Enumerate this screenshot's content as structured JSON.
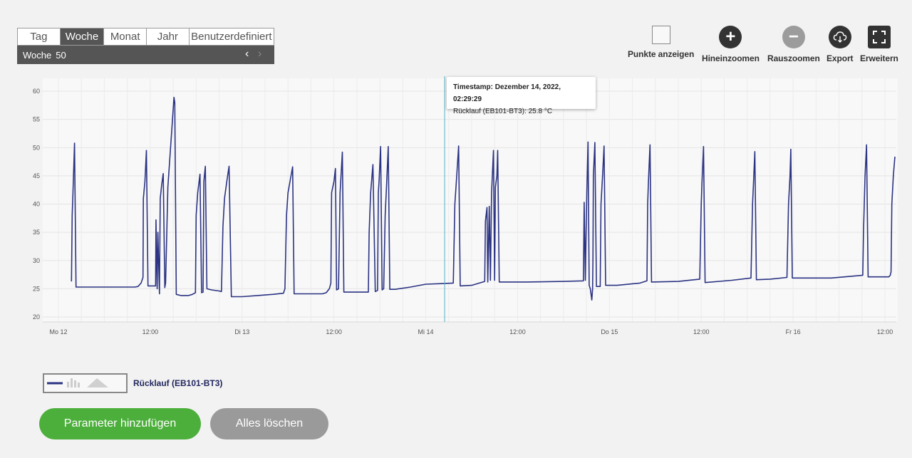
{
  "period": {
    "tabs": [
      "Tag",
      "Woche",
      "Monat",
      "Jahr",
      "Benutzerdefiniert"
    ],
    "active": "Woche",
    "label": "Woche",
    "number": "50"
  },
  "toolbar": {
    "show_points": "Punkte anzeigen",
    "zoom_in": "Hineinzoomen",
    "zoom_out": "Rauszoomen",
    "export": "Export",
    "expand": "Erweitern"
  },
  "tooltip": {
    "timestamp": "Timestamp: Dezember 14, 2022, 02:29:29",
    "value": "Rücklauf (EB101-BT3): 25.8 °C"
  },
  "legend": {
    "label": "Rücklauf (EB101-BT3)"
  },
  "buttons": {
    "add": "Parameter hinzufügen",
    "clear": "Alles löschen"
  },
  "colors": {
    "series": "#2b3382",
    "cursor": "#4fb3c8",
    "add_button": "#4caf3b",
    "clear_button": "#9a9a9a"
  },
  "chart_data": {
    "type": "line",
    "series": [
      {
        "name": "Rücklauf (EB101-BT3)"
      }
    ],
    "x_unit": "hours since Mo 12 00:00",
    "x_range": [
      0,
      108
    ],
    "ylim": [
      20,
      60
    ],
    "yticks": [
      20,
      25,
      30,
      35,
      40,
      45,
      50,
      55,
      60
    ],
    "xticks": [
      {
        "x": 0,
        "label": "Mo 12"
      },
      {
        "x": 12,
        "label": "12:00"
      },
      {
        "x": 24,
        "label": "Di 13"
      },
      {
        "x": 36,
        "label": "12:00"
      },
      {
        "x": 48,
        "label": "Mi 14"
      },
      {
        "x": 60,
        "label": "12:00"
      },
      {
        "x": 72,
        "label": "Do 15"
      },
      {
        "x": 84,
        "label": "12:00"
      },
      {
        "x": 96,
        "label": "Fr 16"
      },
      {
        "x": 108,
        "label": "12:00"
      }
    ],
    "cursor_x": 50.47,
    "points": [
      [
        1.7,
        26.3
      ],
      [
        1.8,
        38
      ],
      [
        1.9,
        42
      ],
      [
        2.1,
        50.8
      ],
      [
        2.3,
        25.3
      ],
      [
        10,
        25.3
      ],
      [
        10.4,
        25.4
      ],
      [
        10.8,
        26
      ],
      [
        11.05,
        27
      ],
      [
        11.1,
        41
      ],
      [
        11.3,
        44
      ],
      [
        11.5,
        49.5
      ],
      [
        11.7,
        25.5
      ],
      [
        12.7,
        25.5
      ],
      [
        12.75,
        37.2
      ],
      [
        12.9,
        25
      ],
      [
        13.0,
        35
      ],
      [
        13.2,
        24.1
      ],
      [
        13.3,
        41
      ],
      [
        13.5,
        43.5
      ],
      [
        13.7,
        45.4
      ],
      [
        13.9,
        25.2
      ],
      [
        14.0,
        26
      ],
      [
        14.3,
        43
      ],
      [
        15.1,
        58.9
      ],
      [
        15.2,
        58
      ],
      [
        15.4,
        24
      ],
      [
        16,
        23.8
      ],
      [
        17,
        23.8
      ],
      [
        17.5,
        24
      ],
      [
        17.9,
        24.3
      ],
      [
        18.0,
        38
      ],
      [
        18.2,
        42
      ],
      [
        18.5,
        45.3
      ],
      [
        18.7,
        24.3
      ],
      [
        18.9,
        24.4
      ],
      [
        19.0,
        44
      ],
      [
        19.2,
        46.7
      ],
      [
        19.4,
        25
      ],
      [
        20,
        24.8
      ],
      [
        21,
        24.6
      ],
      [
        21.3,
        24.5
      ],
      [
        21.5,
        36
      ],
      [
        21.7,
        41
      ],
      [
        22,
        44
      ],
      [
        22.3,
        46.7
      ],
      [
        22.6,
        23.6
      ],
      [
        24,
        23.6
      ],
      [
        26,
        23.8
      ],
      [
        28,
        24
      ],
      [
        29.4,
        24.2
      ],
      [
        29.6,
        25
      ],
      [
        29.8,
        38
      ],
      [
        30,
        42
      ],
      [
        30.6,
        46.6
      ],
      [
        30.8,
        24.1
      ],
      [
        34.5,
        24.1
      ],
      [
        35.0,
        24.3
      ],
      [
        35.4,
        25
      ],
      [
        35.6,
        26
      ],
      [
        35.7,
        42
      ],
      [
        36.0,
        44
      ],
      [
        36.2,
        46.3
      ],
      [
        36.35,
        24.8
      ],
      [
        36.6,
        25
      ],
      [
        36.8,
        42
      ],
      [
        37.1,
        49.2
      ],
      [
        37.3,
        24.4
      ],
      [
        40.5,
        24.4
      ],
      [
        40.6,
        35
      ],
      [
        40.8,
        42
      ],
      [
        41.1,
        47
      ],
      [
        41.4,
        24.5
      ],
      [
        41.7,
        24.7
      ],
      [
        41.8,
        42
      ],
      [
        41.9,
        44
      ],
      [
        42.1,
        50.2
      ],
      [
        42.3,
        24.8
      ],
      [
        42.5,
        25
      ],
      [
        42.7,
        38
      ],
      [
        42.9,
        44
      ],
      [
        43.1,
        50.2
      ],
      [
        43.3,
        24.9
      ],
      [
        44,
        24.9
      ],
      [
        46,
        25.3
      ],
      [
        48,
        25.8
      ],
      [
        50,
        25.9
      ],
      [
        51.6,
        26
      ],
      [
        51.8,
        40
      ],
      [
        52.0,
        44
      ],
      [
        52.3,
        50.3
      ],
      [
        52.5,
        25.5
      ],
      [
        54,
        25.6
      ],
      [
        55.7,
        26.3
      ],
      [
        55.8,
        37
      ],
      [
        56,
        39.4
      ],
      [
        56.1,
        26.2
      ],
      [
        56.3,
        39.6
      ],
      [
        56.45,
        26.5
      ],
      [
        56.6,
        42
      ],
      [
        56.85,
        49.5
      ],
      [
        57.0,
        26.5
      ],
      [
        57.1,
        43
      ],
      [
        57.3,
        45
      ],
      [
        57.4,
        49.5
      ],
      [
        57.6,
        26.2
      ],
      [
        61,
        26.2
      ],
      [
        66,
        26.3
      ],
      [
        68.6,
        26.4
      ],
      [
        68.7,
        40.3
      ],
      [
        68.85,
        26.5
      ],
      [
        68.95,
        35
      ],
      [
        69.05,
        42
      ],
      [
        69.2,
        51
      ],
      [
        69.35,
        25.6
      ],
      [
        69.5,
        25
      ],
      [
        69.7,
        23
      ],
      [
        69.8,
        25
      ],
      [
        69.85,
        30
      ],
      [
        69.9,
        45
      ],
      [
        70.1,
        50.9
      ],
      [
        70.3,
        25.4
      ],
      [
        70.8,
        25.4
      ],
      [
        70.9,
        40
      ],
      [
        71.1,
        45
      ],
      [
        71.3,
        50.3
      ],
      [
        71.5,
        25.6
      ],
      [
        73,
        25.6
      ],
      [
        76,
        26
      ],
      [
        76.9,
        26.4
      ],
      [
        77.0,
        40
      ],
      [
        77.1,
        44
      ],
      [
        77.3,
        50.5
      ],
      [
        77.5,
        26.2
      ],
      [
        81,
        26.3
      ],
      [
        83.8,
        26.7
      ],
      [
        84.0,
        40
      ],
      [
        84.1,
        44
      ],
      [
        84.3,
        50.2
      ],
      [
        84.5,
        26.1
      ],
      [
        88,
        26.5
      ],
      [
        90.5,
        26.9
      ],
      [
        90.7,
        40
      ],
      [
        90.8,
        43
      ],
      [
        91,
        49.3
      ],
      [
        91.2,
        26.6
      ],
      [
        93,
        26.7
      ],
      [
        95.2,
        27
      ],
      [
        95.4,
        40
      ],
      [
        95.6,
        45
      ],
      [
        95.7,
        49.7
      ],
      [
        95.9,
        26.9
      ],
      [
        101,
        26.9
      ],
      [
        105.1,
        27.4
      ],
      [
        105.2,
        35
      ],
      [
        105.4,
        45
      ],
      [
        105.6,
        50.5
      ],
      [
        105.8,
        27.1
      ],
      [
        108.5,
        27.1
      ],
      [
        108.7,
        27.4
      ],
      [
        108.8,
        28
      ],
      [
        108.9,
        40
      ],
      [
        109.1,
        45
      ],
      [
        109.3,
        48.4
      ]
    ]
  }
}
